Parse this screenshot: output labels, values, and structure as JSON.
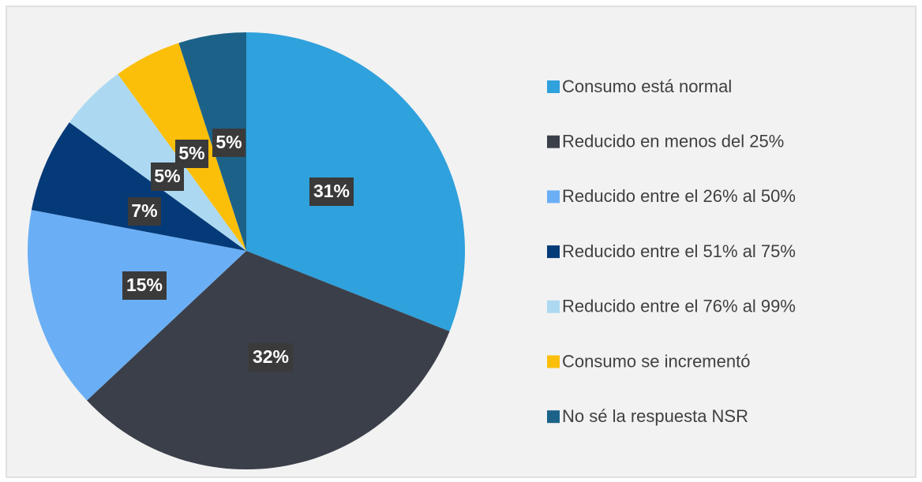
{
  "chart_data": {
    "type": "pie",
    "categories": [
      "Consumo está normal",
      "Reducido en menos del 25%",
      "Reducido entre el 26% al 50%",
      "Reducido entre el 51% al 75%",
      "Reducido entre el 76% al 99%",
      "Consumo se incrementó",
      "No sé la respuesta NSR"
    ],
    "values": [
      31,
      32,
      15,
      7,
      5,
      5,
      5
    ],
    "value_labels": [
      "31%",
      "32%",
      "15%",
      "7%",
      "5%",
      "5%",
      "5%"
    ],
    "colors": [
      "#2fa1dc",
      "#3b3f4a",
      "#6aaff5",
      "#053a78",
      "#acd9f1",
      "#fbbf0a",
      "#1c6288"
    ],
    "legend": "right"
  }
}
